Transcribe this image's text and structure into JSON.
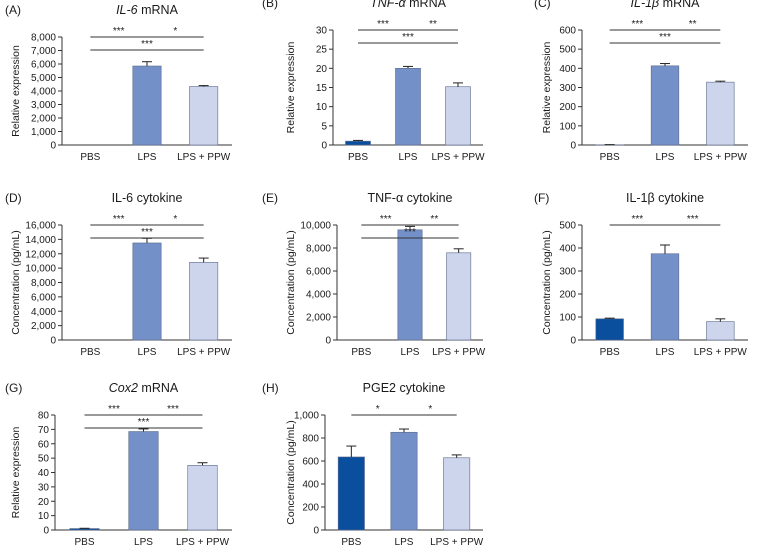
{
  "figure": {
    "category_labels": [
      "PBS",
      "LPS",
      "LPS + PPW"
    ],
    "significance_symbols": [
      "*",
      "**",
      "***"
    ]
  },
  "colors": {
    "PBS": "#0a4f9e",
    "LPS": "#7390c9",
    "LPS + PPW": "#cdd5ec",
    "edge": "#5a6a8a",
    "axis": "#333333",
    "error_bar": "#222222"
  },
  "chart_data": [
    {
      "panel": "(A)",
      "type": "bar",
      "title": "IL-6 mRNA",
      "title_parts": [
        {
          "text": "IL-6",
          "italic": true
        },
        {
          "text": " mRNA",
          "italic": false
        }
      ],
      "ylabel": "Relative expression",
      "ylim": [
        0,
        8000
      ],
      "yticks": [
        "0",
        "1,000",
        "2,000",
        "3,000",
        "4,000",
        "5,000",
        "6,000",
        "7,000",
        "8,000"
      ],
      "categories": [
        "PBS",
        "LPS",
        "LPS + PPW"
      ],
      "values": [
        0,
        5850,
        4330
      ],
      "errors": [
        0,
        320,
        70
      ],
      "significance": [
        {
          "from": 0,
          "to": 2,
          "label": "***"
        },
        {
          "from": 0,
          "to": 1,
          "label": "***"
        },
        {
          "from": 1,
          "to": 2,
          "label": "*"
        }
      ]
    },
    {
      "panel": "(B)",
      "type": "bar",
      "title": "TNF-α mRNA",
      "title_parts": [
        {
          "text": "TNF-α",
          "italic": true
        },
        {
          "text": " mRNA",
          "italic": false
        }
      ],
      "ylabel": "Relative expression",
      "ylim": [
        0,
        30
      ],
      "yticks": [
        "0",
        "5",
        "10",
        "15",
        "20",
        "25",
        "30"
      ],
      "categories": [
        "PBS",
        "LPS",
        "LPS + PPW"
      ],
      "values": [
        1,
        20,
        15.2
      ],
      "errors": [
        0.2,
        0.5,
        1.0
      ],
      "significance": [
        {
          "from": 0,
          "to": 2,
          "label": "***"
        },
        {
          "from": 0,
          "to": 1,
          "label": "***"
        },
        {
          "from": 1,
          "to": 2,
          "label": "**"
        }
      ]
    },
    {
      "panel": "(C)",
      "type": "bar",
      "title": "IL-1β mRNA",
      "title_parts": [
        {
          "text": "IL-1β",
          "italic": true
        },
        {
          "text": " mRNA",
          "italic": false
        }
      ],
      "ylabel": "Relative expression",
      "ylim": [
        0,
        600
      ],
      "yticks": [
        "0",
        "100",
        "200",
        "300",
        "400",
        "500",
        "600"
      ],
      "categories": [
        "PBS",
        "LPS",
        "LPS + PPW"
      ],
      "values": [
        1,
        413,
        328
      ],
      "errors": [
        1,
        12,
        5
      ],
      "significance": [
        {
          "from": 0,
          "to": 2,
          "label": "***"
        },
        {
          "from": 0,
          "to": 1,
          "label": "***"
        },
        {
          "from": 1,
          "to": 2,
          "label": "**"
        }
      ]
    },
    {
      "panel": "(D)",
      "type": "bar",
      "title": "IL-6 cytokine",
      "title_parts": [
        {
          "text": "IL-6 cytokine",
          "italic": false
        }
      ],
      "ylabel": "Concentration (pg/mL)",
      "ylim": [
        0,
        16000
      ],
      "yticks": [
        "0",
        "2,000",
        "4,000",
        "6,000",
        "8,000",
        "10,000",
        "12,000",
        "14,000",
        "16,000"
      ],
      "categories": [
        "PBS",
        "LPS",
        "LPS + PPW"
      ],
      "values": [
        0,
        13500,
        10800
      ],
      "errors": [
        0,
        650,
        600
      ],
      "significance": [
        {
          "from": 0,
          "to": 2,
          "label": "***"
        },
        {
          "from": 0,
          "to": 1,
          "label": "***"
        },
        {
          "from": 1,
          "to": 2,
          "label": "*"
        }
      ]
    },
    {
      "panel": "(E)",
      "type": "bar",
      "title": "TNF-α cytokine",
      "title_parts": [
        {
          "text": "TNF-α cytokine",
          "italic": false
        }
      ],
      "ylabel": "Concentration (pg/mL)",
      "ylim": [
        0,
        10000
      ],
      "yticks": [
        "0",
        "2,000",
        "4,000",
        "6,000",
        "8,000",
        "10,000"
      ],
      "categories": [
        "PBS",
        "LPS",
        "LPS + PPW"
      ],
      "values": [
        0,
        9580,
        7580
      ],
      "errors": [
        0,
        300,
        350
      ],
      "significance": [
        {
          "from": 0,
          "to": 2,
          "label": "***"
        },
        {
          "from": 0,
          "to": 1,
          "label": "***"
        },
        {
          "from": 1,
          "to": 2,
          "label": "**"
        }
      ]
    },
    {
      "panel": "(F)",
      "type": "bar",
      "title": "IL-1β cytokine",
      "title_parts": [
        {
          "text": "IL-1β cytokine",
          "italic": false
        }
      ],
      "ylabel": "Concentration (pg/mL)",
      "ylim": [
        0,
        500
      ],
      "yticks": [
        "0",
        "100",
        "200",
        "300",
        "400",
        "500"
      ],
      "categories": [
        "PBS",
        "LPS",
        "LPS + PPW"
      ],
      "values": [
        92,
        375,
        80
      ],
      "errors": [
        3,
        38,
        12
      ],
      "significance": [
        {
          "from": 0,
          "to": 1,
          "label": "***"
        },
        {
          "from": 1,
          "to": 2,
          "label": "***"
        }
      ]
    },
    {
      "panel": "(G)",
      "type": "bar",
      "title": "Cox2 mRNA",
      "title_parts": [
        {
          "text": "Cox2",
          "italic": true
        },
        {
          "text": " mRNA",
          "italic": false
        }
      ],
      "ylabel": "Relative expression",
      "ylim": [
        0,
        80
      ],
      "yticks": [
        "0",
        "10",
        "20",
        "30",
        "40",
        "50",
        "60",
        "70",
        "80"
      ],
      "categories": [
        "PBS",
        "LPS",
        "LPS + PPW"
      ],
      "values": [
        1,
        68.5,
        45
      ],
      "errors": [
        0.2,
        1.8,
        1.8
      ],
      "significance": [
        {
          "from": 0,
          "to": 2,
          "label": "***"
        },
        {
          "from": 0,
          "to": 1,
          "label": "***"
        },
        {
          "from": 1,
          "to": 2,
          "label": "***"
        }
      ]
    },
    {
      "panel": "(H)",
      "type": "bar",
      "title": "PGE2 cytokine",
      "title_parts": [
        {
          "text": "PGE2 cytokine",
          "italic": false
        }
      ],
      "ylabel": "Concentration (pg/mL)",
      "ylim": [
        0,
        1000
      ],
      "yticks": [
        "0",
        "200",
        "400",
        "600",
        "800",
        "1,000"
      ],
      "categories": [
        "PBS",
        "LPS",
        "LPS + PPW"
      ],
      "values": [
        635,
        850,
        628
      ],
      "errors": [
        95,
        28,
        25
      ],
      "significance": [
        {
          "from": 0,
          "to": 1,
          "label": "*"
        },
        {
          "from": 1,
          "to": 2,
          "label": "*"
        }
      ]
    }
  ]
}
